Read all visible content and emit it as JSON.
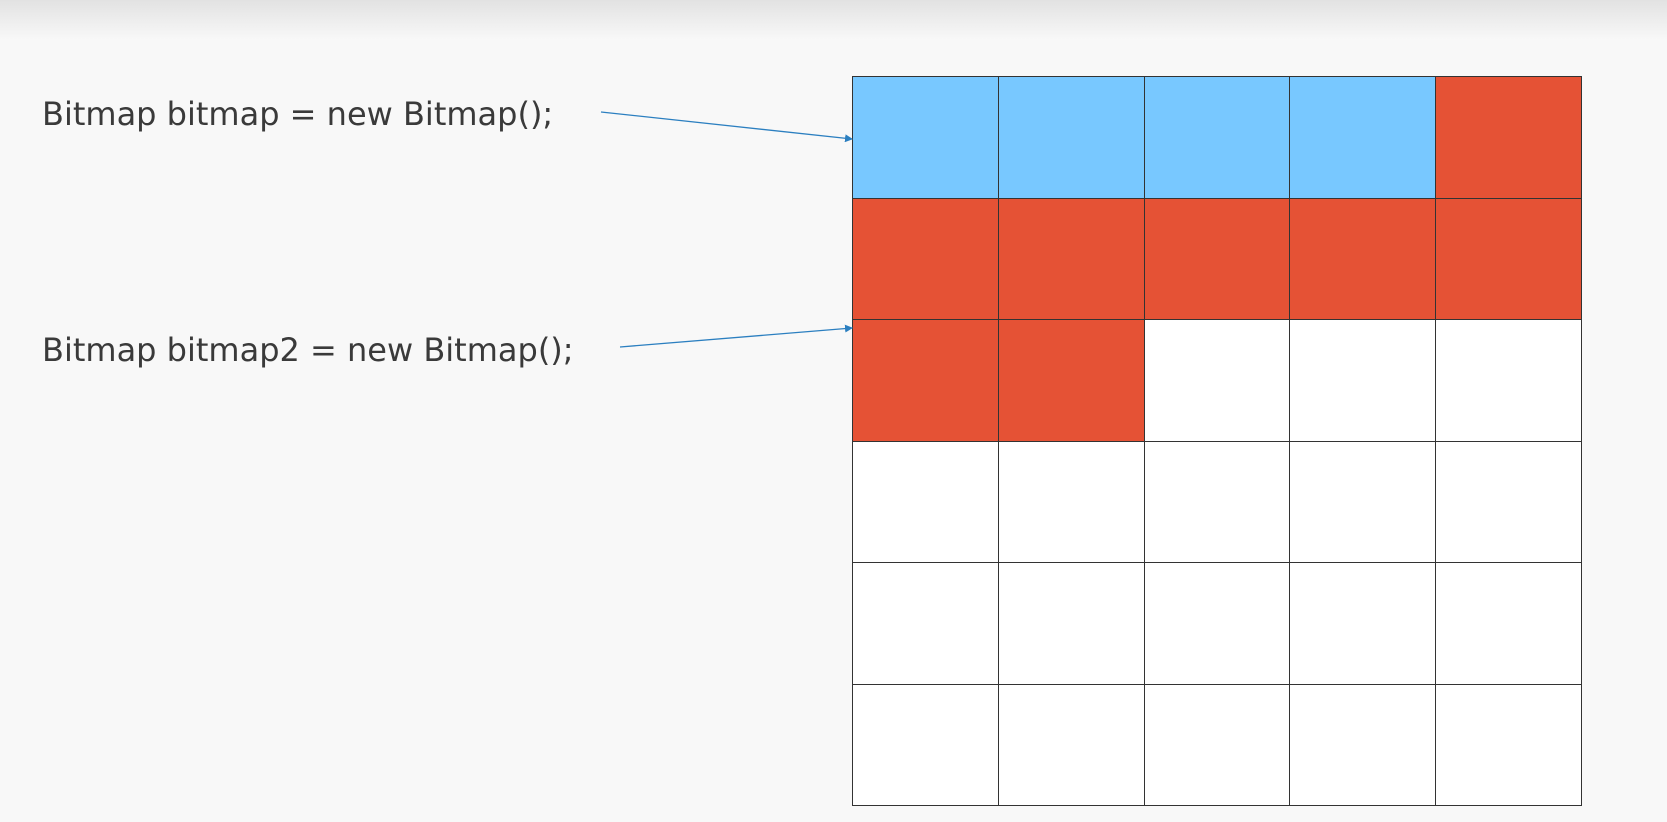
{
  "labels": {
    "first": "Bitmap bitmap = new Bitmap();",
    "second": "Bitmap bitmap2 = new Bitmap();"
  },
  "memory_grid": {
    "columns": 5,
    "rows": 6,
    "cells": [
      "blue",
      "blue",
      "blue",
      "blue",
      "red",
      "red",
      "red",
      "red",
      "red",
      "red",
      "red",
      "red",
      "empty",
      "empty",
      "empty",
      "empty",
      "empty",
      "empty",
      "empty",
      "empty",
      "empty",
      "empty",
      "empty",
      "empty",
      "empty",
      "empty",
      "empty",
      "empty",
      "empty",
      "empty"
    ]
  },
  "colors": {
    "blue": "#78c8ff",
    "red": "#e55235",
    "empty": "#ffffff",
    "arrow": "#2b7fc0",
    "text": "#3a3a3a"
  }
}
